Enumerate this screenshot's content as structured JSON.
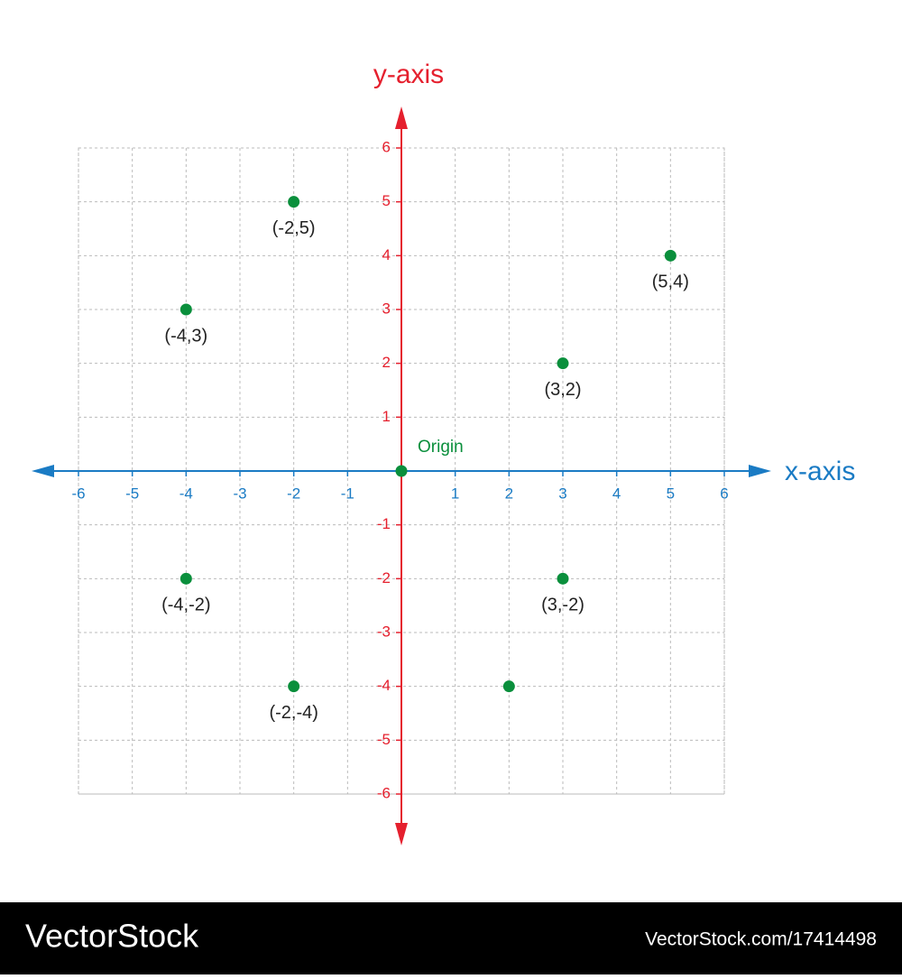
{
  "chart_data": {
    "type": "scatter",
    "x_label": "x-axis",
    "y_label": "y-axis",
    "x": [
      -2,
      5,
      -4,
      3,
      0,
      -4,
      3,
      -2,
      2
    ],
    "values": [
      5,
      4,
      3,
      2,
      0,
      -2,
      -2,
      -4,
      -4
    ],
    "value_labels": [
      "(-2,5)",
      "(5,4)",
      "(-4,3)",
      "(3,2)",
      "Origin",
      "(-4,-2)",
      "(3,-2)",
      "(-2,-4)",
      null
    ],
    "color": "#0a8f3c",
    "x_axis_color": "#1a7bc4",
    "y_axis_color": "#e5202e",
    "xlim": [
      -6,
      6
    ],
    "ylim": [
      -6,
      6
    ],
    "xticks": [
      -6,
      -5,
      -4,
      -3,
      -2,
      -1,
      1,
      2,
      3,
      4,
      5,
      6
    ],
    "yticks": [
      -6,
      -5,
      -4,
      -3,
      -2,
      -1,
      1,
      2,
      3,
      4,
      5,
      6
    ],
    "grid": true
  },
  "footer": {
    "brand": "VectorStock",
    "id": "VectorStock.com/17414498"
  }
}
